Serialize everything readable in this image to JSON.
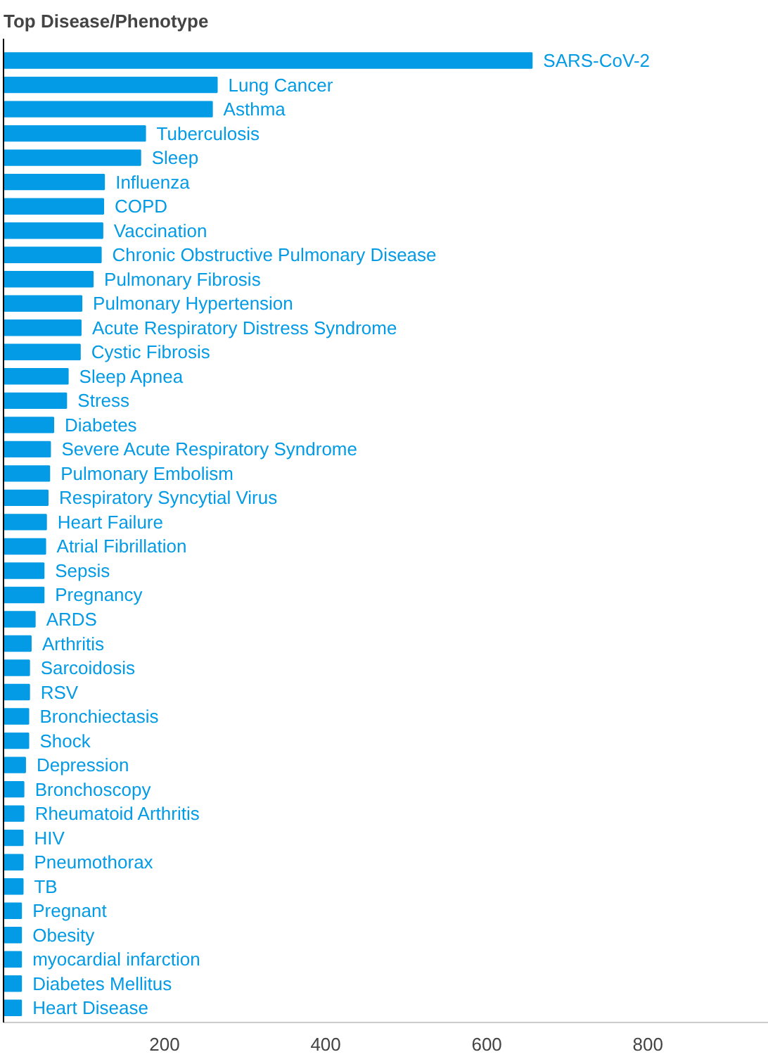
{
  "chart_data": {
    "type": "bar",
    "orientation": "horizontal",
    "title": "Top Disease/Phenotype",
    "categories": [
      "SARS-CoV-2",
      "Lung Cancer",
      "Asthma",
      "Tuberculosis",
      "Sleep",
      "Influenza",
      "COPD",
      "Vaccination",
      "Chronic Obstructive Pulmonary Disease",
      "Pulmonary Fibrosis",
      "Pulmonary Hypertension",
      "Acute Respiratory Distress Syndrome",
      "Cystic Fibrosis",
      "Sleep Apnea",
      "Stress",
      "Diabetes",
      "Severe Acute Respiratory Syndrome",
      "Pulmonary Embolism",
      "Respiratory Syncytial Virus",
      "Heart Failure",
      "Atrial Fibrillation",
      "Sepsis",
      "Pregnancy",
      "ARDS",
      "Arthritis",
      "Sarcoidosis",
      "RSV",
      "Bronchiectasis",
      "Shock",
      "Depression",
      "Bronchoscopy",
      "Rheumatoid Arthritis",
      "HIV",
      "Pneumothorax",
      "TB",
      "Pregnant",
      "Obesity",
      "myocardial infarction",
      "Diabetes Mellitus",
      "Heart Disease"
    ],
    "values": [
      656,
      265,
      259,
      176,
      170,
      125,
      124,
      123,
      121,
      111,
      97,
      96,
      95,
      80,
      78,
      62,
      58,
      57,
      55,
      53,
      52,
      50,
      50,
      39,
      34,
      32,
      32,
      31,
      31,
      27,
      25,
      25,
      24,
      24,
      24,
      22,
      22,
      22,
      22,
      22
    ],
    "color": "#039be5",
    "xlim": [
      0,
      950
    ],
    "xticks": [
      200,
      400,
      600,
      800
    ]
  }
}
